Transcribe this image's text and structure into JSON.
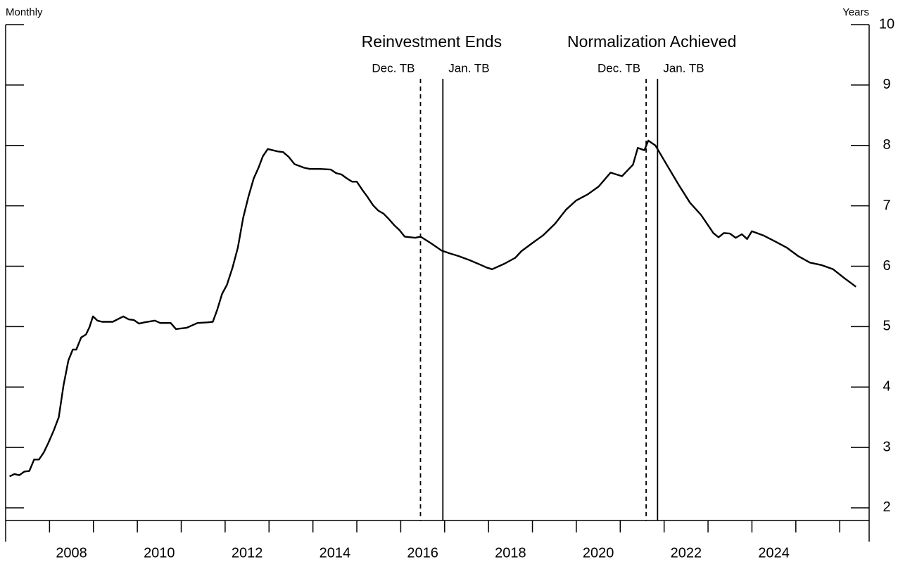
{
  "chart_data": {
    "type": "line",
    "left_label": "Monthly",
    "right_label": "Years",
    "color": "#000000",
    "xlim": [
      2007.0,
      2026.67
    ],
    "ylim": [
      1.79,
      10
    ],
    "yticks": [
      2,
      3,
      4,
      5,
      6,
      7,
      8,
      9,
      10
    ],
    "xticks": [
      2008,
      2009,
      2010,
      2011,
      2012,
      2013,
      2014,
      2015,
      2016,
      2017,
      2018,
      2019,
      2020,
      2021,
      2022,
      2023,
      2024,
      2025,
      2026
    ],
    "xlabels": [
      2008,
      2010,
      2012,
      2014,
      2016,
      2018,
      2020,
      2022,
      2024
    ],
    "events": [
      {
        "label": "Reinvestment Ends",
        "lines": [
          {
            "x": 2016.45,
            "label": "Dec. TB",
            "dashed": true
          },
          {
            "x": 2016.96,
            "label": "Jan. TB",
            "dashed": false
          }
        ]
      },
      {
        "label": "Normalization Achieved",
        "lines": [
          {
            "x": 2021.59,
            "label": "Dec. TB",
            "dashed": true
          },
          {
            "x": 2021.85,
            "label": "Jan. TB",
            "dashed": false
          }
        ]
      }
    ],
    "x": [
      2007.09,
      2007.2,
      2007.31,
      2007.43,
      2007.54,
      2007.65,
      2007.76,
      2007.87,
      2007.97,
      2008.09,
      2008.21,
      2008.32,
      2008.43,
      2008.53,
      2008.61,
      2008.72,
      2008.83,
      2008.91,
      2008.99,
      2009.09,
      2009.2,
      2009.44,
      2009.68,
      2009.8,
      2009.92,
      2010.04,
      2010.16,
      2010.4,
      2010.52,
      2010.76,
      2010.88,
      2011.12,
      2011.37,
      2011.6,
      2011.72,
      2011.82,
      2011.93,
      2012.04,
      2012.17,
      2012.29,
      2012.41,
      2012.53,
      2012.65,
      2012.76,
      2012.86,
      2012.97,
      2013.2,
      2013.32,
      2013.45,
      2013.58,
      2013.8,
      2013.93,
      2014.17,
      2014.41,
      2014.53,
      2014.65,
      2014.76,
      2014.89,
      2015.0,
      2015.13,
      2015.24,
      2015.37,
      2015.49,
      2015.61,
      2015.73,
      2015.85,
      2015.97,
      2016.09,
      2016.33,
      2016.45,
      2016.69,
      2016.93,
      2017.13,
      2017.31,
      2017.57,
      2017.83,
      2017.95,
      2018.08,
      2018.36,
      2018.61,
      2018.75,
      2019.01,
      2019.24,
      2019.51,
      2019.77,
      2020.0,
      2020.26,
      2020.51,
      2020.78,
      2021.04,
      2021.29,
      2021.4,
      2021.55,
      2021.64,
      2021.8,
      2022.06,
      2022.33,
      2022.59,
      2022.84,
      2023.12,
      2023.24,
      2023.36,
      2023.5,
      2023.63,
      2023.77,
      2023.89,
      2024.0,
      2024.26,
      2024.53,
      2024.79,
      2025.05,
      2025.32,
      2025.58,
      2025.85,
      2026.11,
      2026.37
    ],
    "values": [
      2.52,
      2.56,
      2.54,
      2.6,
      2.61,
      2.8,
      2.8,
      2.92,
      3.07,
      3.27,
      3.5,
      4.03,
      4.44,
      4.62,
      4.62,
      4.82,
      4.87,
      4.99,
      5.17,
      5.1,
      5.08,
      5.08,
      5.17,
      5.12,
      5.11,
      5.05,
      5.07,
      5.1,
      5.06,
      5.06,
      4.96,
      4.98,
      5.06,
      5.07,
      5.08,
      5.28,
      5.54,
      5.69,
      5.98,
      6.31,
      6.8,
      7.15,
      7.45,
      7.63,
      7.82,
      7.94,
      7.9,
      7.89,
      7.81,
      7.69,
      7.63,
      7.61,
      7.61,
      7.6,
      7.54,
      7.52,
      7.46,
      7.4,
      7.4,
      7.26,
      7.15,
      7.01,
      6.92,
      6.87,
      6.78,
      6.68,
      6.6,
      6.49,
      6.47,
      6.49,
      6.38,
      6.26,
      6.21,
      6.17,
      6.1,
      6.02,
      5.98,
      5.95,
      6.04,
      6.14,
      6.25,
      6.39,
      6.51,
      6.7,
      6.94,
      7.09,
      7.19,
      7.32,
      7.55,
      7.49,
      7.68,
      7.96,
      7.92,
      8.08,
      8.0,
      7.68,
      7.35,
      7.05,
      6.85,
      6.55,
      6.48,
      6.55,
      6.54,
      6.47,
      6.53,
      6.45,
      6.58,
      6.51,
      6.41,
      6.31,
      6.17,
      6.06,
      6.02,
      5.95,
      5.8,
      5.66
    ]
  }
}
